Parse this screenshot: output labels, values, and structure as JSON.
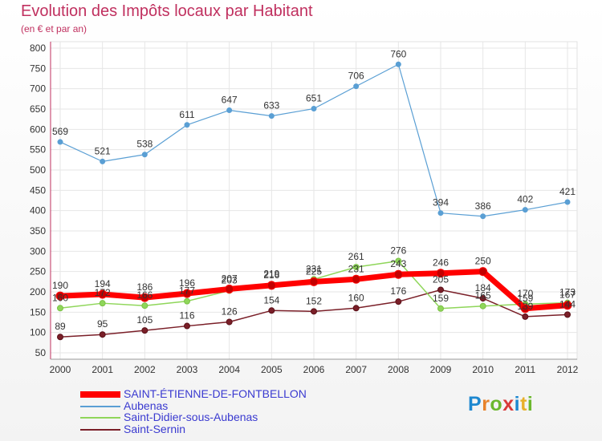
{
  "title": "Evolution des Impôts locaux par Habitant",
  "subtitle": "(en € et par an)",
  "logo": {
    "text": "Proxiti",
    "colors": [
      "#1e88d0",
      "#e8822a",
      "#6cb82e",
      "#d93a3a",
      "#1e88d0",
      "#e8b02a",
      "#6cb82e"
    ]
  },
  "chart_data": {
    "type": "line",
    "x": [
      "2000",
      "2001",
      "2002",
      "2003",
      "2004",
      "2005",
      "2006",
      "2007",
      "2008",
      "2009",
      "2010",
      "2011",
      "2012"
    ],
    "ylim": [
      50,
      800
    ],
    "yticks": [
      50,
      100,
      150,
      200,
      250,
      300,
      350,
      400,
      450,
      500,
      550,
      600,
      650,
      700,
      750,
      800
    ],
    "grid": true,
    "legend_position": "bottom-left",
    "series": [
      {
        "name": "SAINT-ÉTIENNE-DE-FONTBELLON",
        "color": "#ff0000",
        "values": [
          190,
          194,
          186,
          196,
          207,
          216,
          225,
          231,
          243,
          246,
          250,
          159,
          167
        ]
      },
      {
        "name": "Aubenas",
        "color": "#5a9fd4",
        "values": [
          569,
          521,
          538,
          611,
          647,
          633,
          651,
          706,
          760,
          394,
          386,
          402,
          421
        ]
      },
      {
        "name": "Saint-Didier-sous-Aubenas",
        "color": "#8fd65a",
        "values": [
          160,
          172,
          166,
          177,
          203,
          219,
          231,
          261,
          276,
          159,
          165,
          170,
          173
        ]
      },
      {
        "name": "Saint-Sernin",
        "color": "#7a1f28",
        "values": [
          89,
          95,
          105,
          116,
          126,
          154,
          152,
          160,
          176,
          205,
          184,
          139,
          144
        ]
      }
    ]
  }
}
